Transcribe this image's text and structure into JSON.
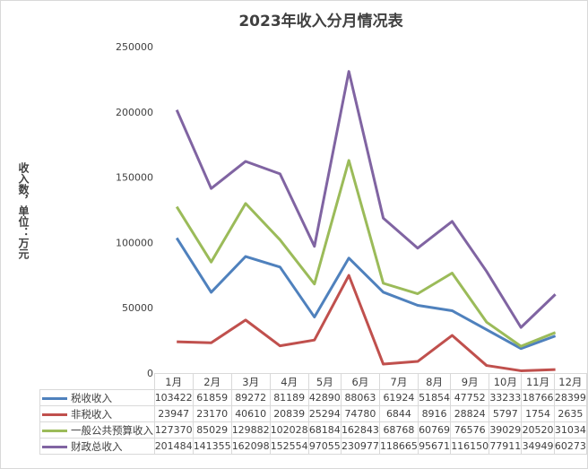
{
  "chart_data": {
    "type": "line",
    "title": "2023年收入分月情况表",
    "ylabel": "收入数，单位：万元",
    "xlabel": "",
    "categories": [
      "1月",
      "2月",
      "3月",
      "4月",
      "5月",
      "6月",
      "7月",
      "8月",
      "9月",
      "10月",
      "11月",
      "12月"
    ],
    "ylim": [
      0,
      250000
    ],
    "yticks": [
      "0",
      "50000",
      "100000",
      "150000",
      "200000",
      "250000"
    ],
    "grid": false,
    "legend": "data-table-bottom",
    "series": [
      {
        "name": "税收收入",
        "color": "#4f81bd",
        "values": [
          103422,
          61859,
          89272,
          81189,
          42890,
          88063,
          61924,
          51854,
          47752,
          33233,
          18766,
          28399
        ]
      },
      {
        "name": "非税收入",
        "color": "#c0504d",
        "values": [
          23947,
          23170,
          40610,
          20839,
          25294,
          74780,
          6844,
          8916,
          28824,
          5797,
          1754,
          2635
        ]
      },
      {
        "name": "一般公共预算收入",
        "color": "#9bbb59",
        "values": [
          127370,
          85029,
          129882,
          102028,
          68184,
          162843,
          68768,
          60769,
          76576,
          39029,
          20520,
          31034
        ]
      },
      {
        "name": "财政总收入",
        "color": "#8064a2",
        "values": [
          201484,
          141355,
          162098,
          152554,
          97055,
          230977,
          118665,
          95671,
          116150,
          77911,
          34949,
          60273
        ]
      }
    ]
  }
}
